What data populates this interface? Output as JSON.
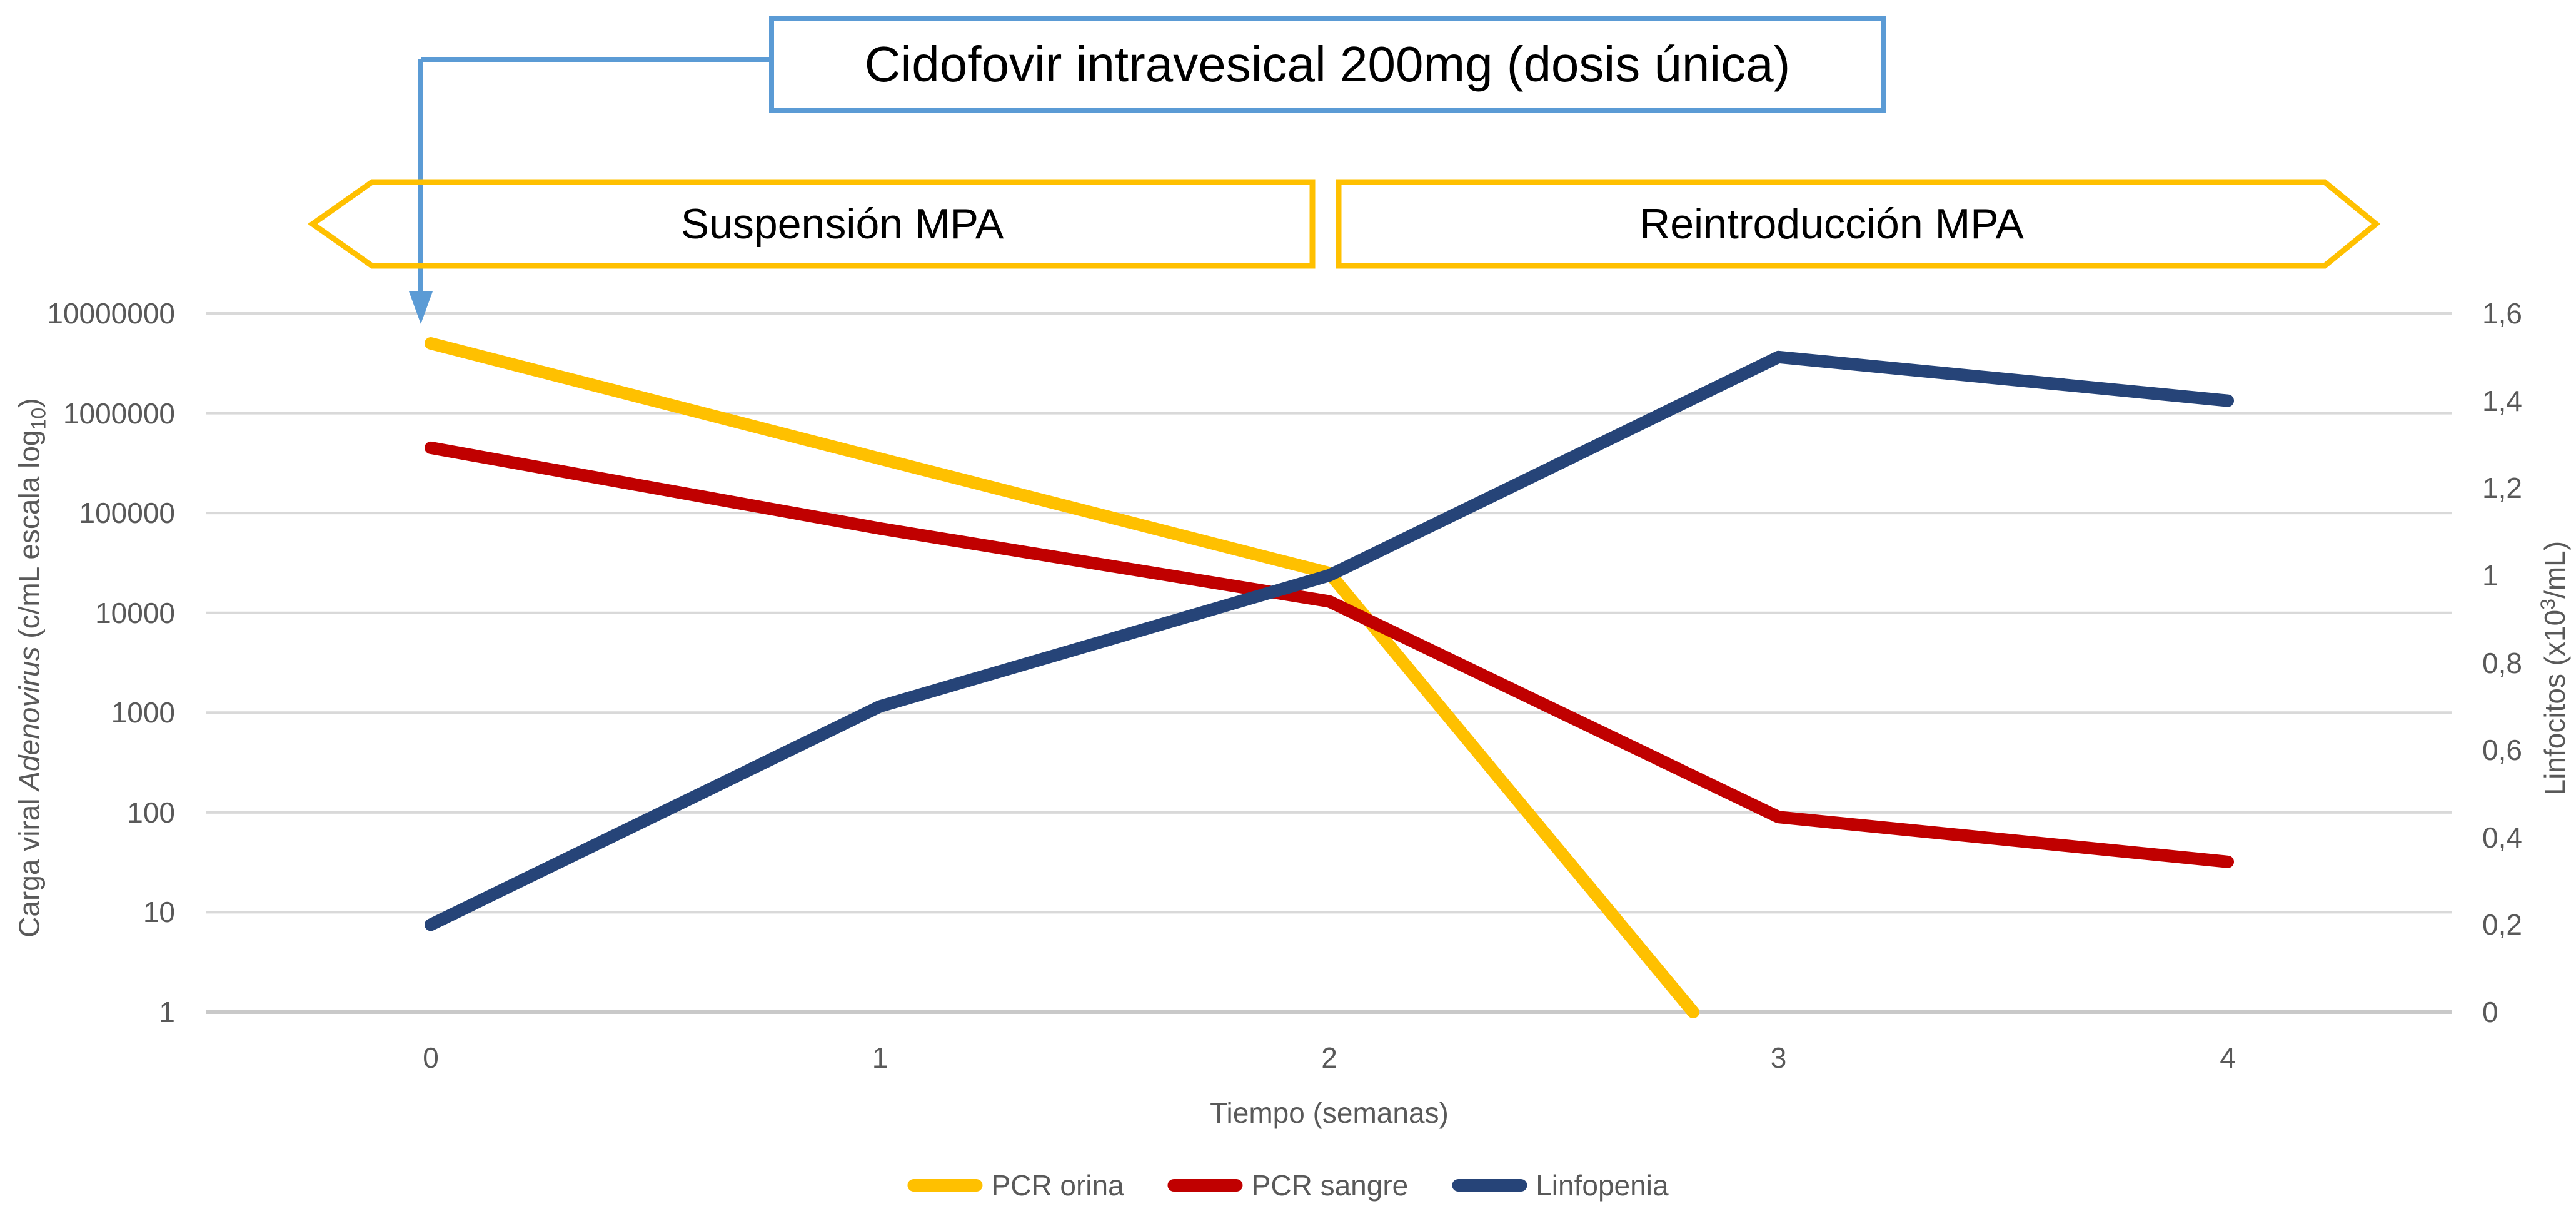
{
  "colors": {
    "callout_blue": "#5B9BD5",
    "banner_yellow": "#FFC000",
    "gridline_gray": "#D9D9D9",
    "axis_line_gray": "#C9C9C9",
    "label_gray": "#595959",
    "series_orina": "#FFC000",
    "series_sangre": "#C00000",
    "series_linfopenia": "#264478"
  },
  "callout": {
    "text": "Cidofovir intravesical 200mg (dosis única)"
  },
  "banners": [
    {
      "label": "Suspensión MPA"
    },
    {
      "label": "Reintroducción MPA"
    }
  ],
  "axes": {
    "left": {
      "title_part1": "Carga viral ",
      "title_part2_italic": "Adenovirus",
      "title_part3": " (c/mL escala log",
      "title_sub": "10",
      "title_part4": ")",
      "ticks": [
        "10000000",
        "1000000",
        "100000",
        "10000",
        "1000",
        "100",
        "10",
        "1"
      ]
    },
    "right": {
      "title_part1": "Linfocitos (x10",
      "title_sup": "3",
      "title_part2": "/mL)",
      "ticks": [
        "1,6",
        "1,4",
        "1,2",
        "1",
        "0,8",
        "0,6",
        "0,4",
        "0,2",
        "0"
      ]
    },
    "x": {
      "title": "Tiempo (semanas)",
      "ticks": [
        "0",
        "1",
        "2",
        "3",
        "4"
      ]
    }
  },
  "legend": [
    {
      "label": "PCR orina",
      "color": "#FFC000"
    },
    {
      "label": "PCR sangre",
      "color": "#C00000"
    },
    {
      "label": "Linfopenia",
      "color": "#264478"
    }
  ],
  "chart_data": {
    "type": "line",
    "title_annotation": "Cidofovir intravesical 200mg (dosis única)",
    "phase_annotations": [
      "Suspensión MPA (semanas 0-2)",
      "Reintroducción MPA (semanas 2-4)"
    ],
    "x": [
      0,
      1,
      2,
      3,
      4
    ],
    "xlabel": "Tiempo (semanas)",
    "left_axis": {
      "label": "Carga viral Adenovirus (c/mL escala log10)",
      "scale": "log10",
      "min": 1,
      "max": 10000000,
      "gridlines": true
    },
    "right_axis": {
      "label": "Linfocitos (x10^3/mL)",
      "scale": "linear",
      "min": 0,
      "max": 1.6,
      "tick_step": 0.2
    },
    "legend_position": "bottom",
    "series": [
      {
        "name": "PCR orina",
        "axis": "left",
        "color": "#FFC000",
        "values_by_week": [
          5000000,
          350000,
          25000,
          null,
          null
        ],
        "plot_points": [
          [
            0,
            5000000
          ],
          [
            1,
            350000
          ],
          [
            2,
            25000
          ],
          [
            2.81,
            1
          ]
        ],
        "note": "desciende por debajo del mínimo del eje (indetectable) después de la semana 2; la línea se corta en el eje"
      },
      {
        "name": "PCR sangre",
        "axis": "left",
        "color": "#C00000",
        "values_by_week": [
          450000,
          70000,
          13000,
          90,
          32
        ],
        "plot_points": [
          [
            0,
            450000
          ],
          [
            1,
            70000
          ],
          [
            2,
            13000
          ],
          [
            3,
            90
          ],
          [
            4,
            32
          ]
        ]
      },
      {
        "name": "Linfopenia",
        "axis": "right",
        "color": "#264478",
        "values_by_week": [
          0.2,
          0.7,
          1.0,
          1.5,
          1.4
        ],
        "plot_points": [
          [
            0,
            0.2
          ],
          [
            1,
            0.7
          ],
          [
            2,
            1.0
          ],
          [
            3,
            1.5
          ],
          [
            4,
            1.4
          ]
        ]
      }
    ]
  }
}
